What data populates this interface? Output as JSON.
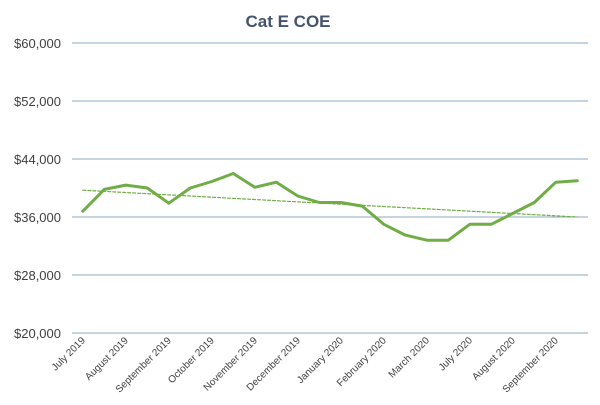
{
  "chart_data": {
    "type": "line",
    "title": "Cat E COE",
    "xlabel": "",
    "ylabel": "",
    "ylim": [
      20000,
      60000
    ],
    "yticks": [
      20000,
      28000,
      36000,
      44000,
      52000,
      60000
    ],
    "ytick_labels": [
      "$20,000",
      "$28,000",
      "$36,000",
      "$44,000",
      "$52,000",
      "$60,000"
    ],
    "x_tick_labels": [
      "July 2019",
      "August 2019",
      "September 2019",
      "October 2019",
      "November 2019",
      "December 2019",
      "January 2020",
      "February 2020",
      "March 2020",
      "July 2020",
      "August 2020",
      "September 2020"
    ],
    "grid": true,
    "legend": "none",
    "series": [
      {
        "values": [
          36800,
          39800,
          40400,
          40000,
          37900,
          40000,
          40900,
          42000,
          40100,
          40800,
          38900,
          38000,
          38000,
          37500,
          35000,
          33500,
          32800,
          32800,
          35000,
          35000,
          36500,
          38000,
          40800,
          41000
        ],
        "color": "#70AD47",
        "style": "solid"
      },
      {
        "values": [
          39700,
          36000
        ],
        "color": "#70AD47",
        "style": "dotted",
        "kind": "linear-trendline"
      }
    ]
  }
}
